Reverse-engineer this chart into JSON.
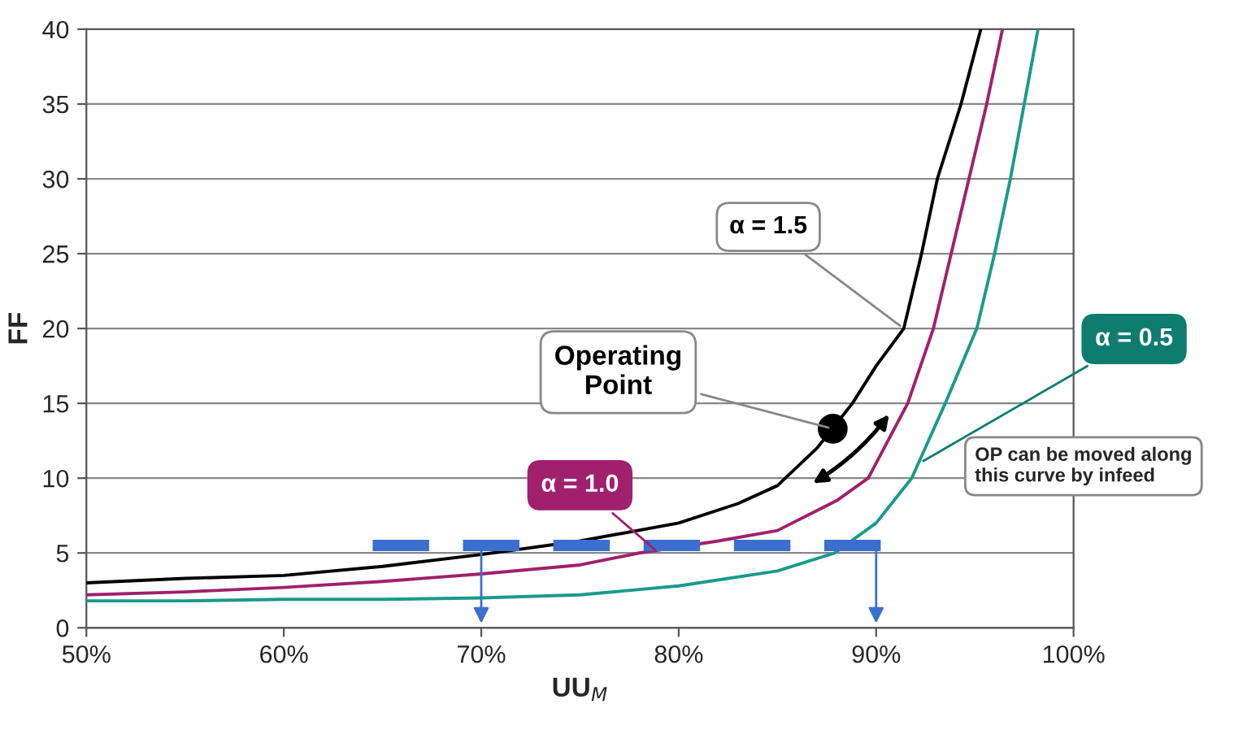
{
  "chart_data": {
    "type": "line",
    "xlabel": "UU$_{M}$",
    "ylabel": "FF",
    "xlim": [
      50,
      100
    ],
    "ylim": [
      0,
      40
    ],
    "xticks": [
      {
        "value": 50,
        "label": "50%"
      },
      {
        "value": 60,
        "label": "60%"
      },
      {
        "value": 70,
        "label": "70%"
      },
      {
        "value": 80,
        "label": "80%"
      },
      {
        "value": 90,
        "label": "90%"
      },
      {
        "value": 100,
        "label": "100%"
      }
    ],
    "yticks": [
      0,
      5,
      10,
      15,
      20,
      25,
      30,
      35,
      40
    ],
    "grid": "y",
    "legend": false,
    "marker": "none",
    "line_style": "solid",
    "series": [
      {
        "color": "#000000",
        "x": [
          50,
          55,
          60,
          65,
          70,
          75,
          80,
          83,
          85,
          87,
          88.8,
          90,
          91.4,
          92.3,
          93.1,
          94.3,
          95.3
        ],
        "values": [
          3.0,
          3.3,
          3.5,
          4.1,
          4.9,
          5.8,
          7.0,
          8.3,
          9.5,
          12.0,
          15,
          17.5,
          20,
          25,
          30,
          35,
          40
        ]
      },
      {
        "color": "#a0206e",
        "x": [
          50,
          55,
          60,
          65,
          70,
          75,
          78,
          82,
          85,
          88,
          89.6,
          91.6,
          92.9,
          93.8,
          94.7,
          95.6,
          96.4
        ],
        "values": [
          2.2,
          2.4,
          2.7,
          3.1,
          3.6,
          4.2,
          5.0,
          5.8,
          6.5,
          8.5,
          10,
          15,
          20,
          25,
          30,
          35,
          40
        ]
      },
      {
        "color": "#1a9a8a",
        "x": [
          50,
          55,
          60,
          65,
          70,
          75,
          80,
          85,
          87.9,
          90,
          91.8,
          93.5,
          95.1,
          96.0,
          96.8,
          97.5,
          98.2
        ],
        "values": [
          1.8,
          1.8,
          1.9,
          1.9,
          2.0,
          2.2,
          2.8,
          3.8,
          5,
          7,
          10,
          15,
          20,
          25,
          30,
          35,
          40
        ]
      },
      {
        "color": "#3a6fd0",
        "x": [
          64.5,
          90.5
        ],
        "values": [
          5.5,
          5.5
        ],
        "line_style": "dashed"
      },
      {
        "type": "scatter",
        "color": "#000000",
        "x": [
          87.8
        ],
        "values": [
          13.3
        ],
        "marker": "circle"
      }
    ],
    "annotations": [
      {
        "text": "α = 1.5",
        "x": 91.4,
        "y": 20
      },
      {
        "text": "α = 0.5",
        "x": 92.2,
        "y": 11
      },
      {
        "text": "α = 1.0",
        "x": 79,
        "y": 5
      },
      {
        "text": "Operating\nPoint",
        "x": 87.8,
        "y": 13.3
      },
      "OP can be moved along\nthis curve by infeed"
    ]
  }
}
